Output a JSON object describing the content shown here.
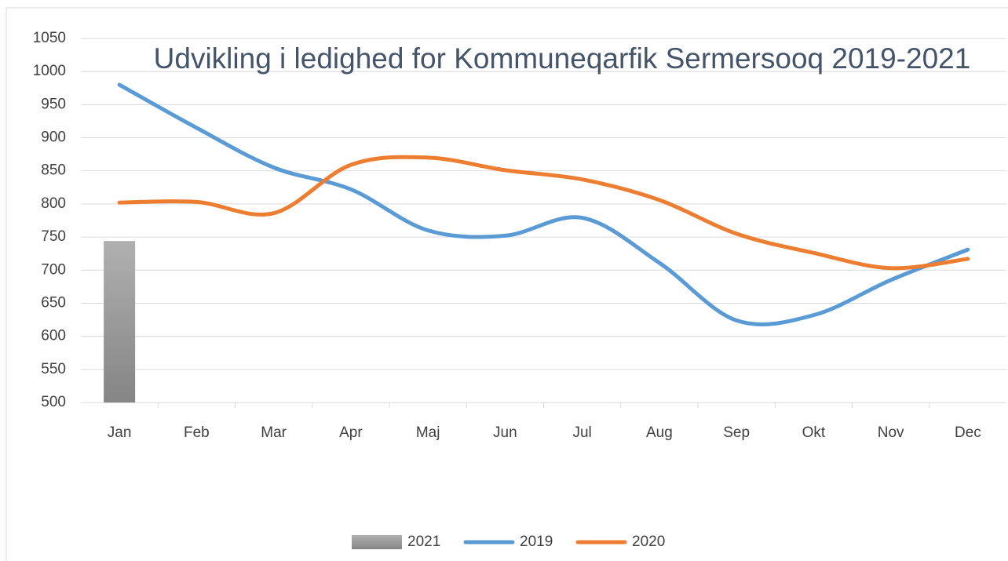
{
  "chart_data": {
    "type": "line",
    "title": "Udvikling i ledighed for Kommuneqarfik Sermersooq 2019-2021",
    "categories": [
      "Jan",
      "Feb",
      "Mar",
      "Apr",
      "Maj",
      "Jun",
      "Jul",
      "Aug",
      "Sep",
      "Okt",
      "Nov",
      "Dec"
    ],
    "series": [
      {
        "name": "2021",
        "type": "bar",
        "color": "#a0a0a0",
        "values": [
          744,
          null,
          null,
          null,
          null,
          null,
          null,
          null,
          null,
          null,
          null,
          null
        ]
      },
      {
        "name": "2019",
        "type": "line",
        "color": "#5b9bd5",
        "values": [
          980,
          915,
          855,
          822,
          760,
          752,
          779,
          711,
          624,
          632,
          685,
          731
        ]
      },
      {
        "name": "2020",
        "type": "line",
        "color": "#ed7d31",
        "values": [
          802,
          803,
          786,
          859,
          870,
          851,
          837,
          806,
          755,
          726,
          703,
          717
        ]
      }
    ],
    "ylim": [
      500,
      1050
    ],
    "yticks": [
      500,
      550,
      600,
      650,
      700,
      750,
      800,
      850,
      900,
      950,
      1000,
      1050
    ],
    "grid": true,
    "legend": "bottom"
  }
}
